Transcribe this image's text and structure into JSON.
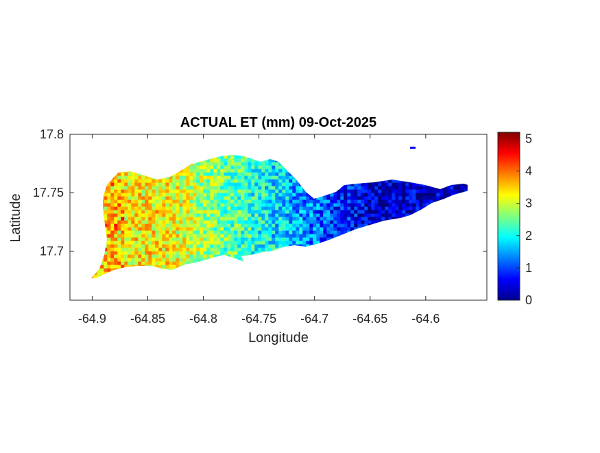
{
  "chart_data": {
    "type": "heatmap",
    "title": "ACTUAL ET (mm) 09-Oct-2025",
    "xlabel": "Longitude",
    "ylabel": "Latitude",
    "xlim": [
      -64.92,
      -64.545
    ],
    "ylim": [
      17.658,
      17.8
    ],
    "x_ticks": [
      -64.9,
      -64.85,
      -64.8,
      -64.75,
      -64.7,
      -64.65,
      -64.6
    ],
    "x_tick_labels": [
      "-64.9",
      "-64.85",
      "-64.8",
      "-64.75",
      "-64.7",
      "-64.65",
      "-64.6"
    ],
    "y_ticks": [
      17.7,
      17.75,
      17.8
    ],
    "y_tick_labels": [
      "17.7",
      "17.75",
      "17.8"
    ],
    "colorbar": {
      "colormap": "jet",
      "clim": [
        0,
        5.2
      ],
      "ticks": [
        0,
        1,
        2,
        3,
        4,
        5
      ],
      "tick_labels": [
        "0",
        "1",
        "2",
        "3",
        "4",
        "5"
      ]
    },
    "regional_values": [
      {
        "lon_range": [
          -64.9,
          -64.77
        ],
        "typical_value": 3.3
      },
      {
        "lon_range": [
          -64.77,
          -64.72
        ],
        "typical_value": 2.0
      },
      {
        "lon_range": [
          -64.72,
          -64.57
        ],
        "typical_value": 0.3
      }
    ],
    "grid": false
  }
}
